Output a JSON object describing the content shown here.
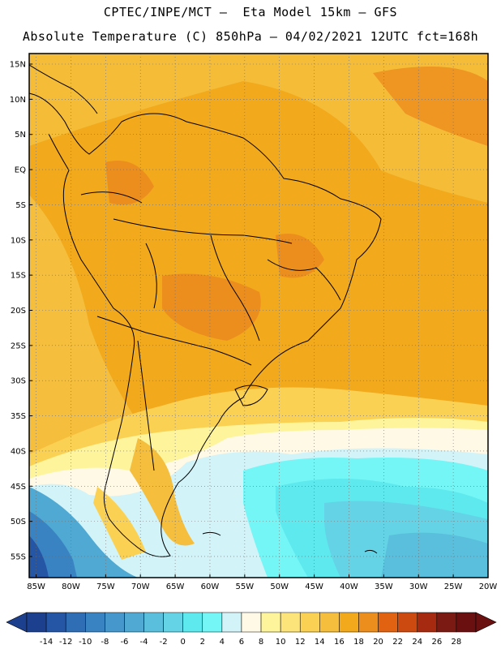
{
  "header": {
    "line1": "CPTEC/INPE/MCT –  Eta Model 15km – GFS",
    "line2": "Absolute Temperature (C) 850hPa – 04/02/2021 12UTC fct=168h"
  },
  "map": {
    "lat_labels": [
      "15N",
      "10N",
      "5N",
      "EQ",
      "5S",
      "10S",
      "15S",
      "20S",
      "25S",
      "30S",
      "35S",
      "40S",
      "45S",
      "50S",
      "55S"
    ],
    "lat_values": [
      15,
      10,
      5,
      0,
      -5,
      -10,
      -15,
      -20,
      -25,
      -30,
      -35,
      -40,
      -45,
      -50,
      -55
    ],
    "lon_labels": [
      "85W",
      "80W",
      "75W",
      "70W",
      "65W",
      "60W",
      "55W",
      "50W",
      "45W",
      "40W",
      "35W",
      "30W",
      "25W",
      "20W"
    ],
    "lon_values": [
      -85,
      -80,
      -75,
      -70,
      -65,
      -60,
      -55,
      -50,
      -45,
      -40,
      -35,
      -30,
      -25,
      -20
    ],
    "lat_range": [
      -58,
      16.5
    ],
    "lon_range": [
      -86,
      -20
    ],
    "grid": true
  },
  "colorbar": {
    "labels": [
      "-14",
      "-12",
      "-10",
      "-8",
      "-6",
      "-4",
      "-2",
      "0",
      "2",
      "4",
      "6",
      "8",
      "10",
      "12",
      "14",
      "16",
      "18",
      "20",
      "22",
      "24",
      "26",
      "28"
    ],
    "colors": [
      "#1c3f8e",
      "#2556a5",
      "#2f6db5",
      "#3a83c3",
      "#4597cc",
      "#4fa9d2",
      "#5abfdc",
      "#64d3e6",
      "#5ee9ee",
      "#74f6f6",
      "#d2f3f8",
      "#fff9e6",
      "#fef49c",
      "#fde47a",
      "#fbd154",
      "#f5be3c",
      "#f2a91c",
      "#ec8e1e",
      "#e16312",
      "#cc4a10",
      "#a52a10",
      "#7a1a12",
      "#6a1010"
    ]
  }
}
